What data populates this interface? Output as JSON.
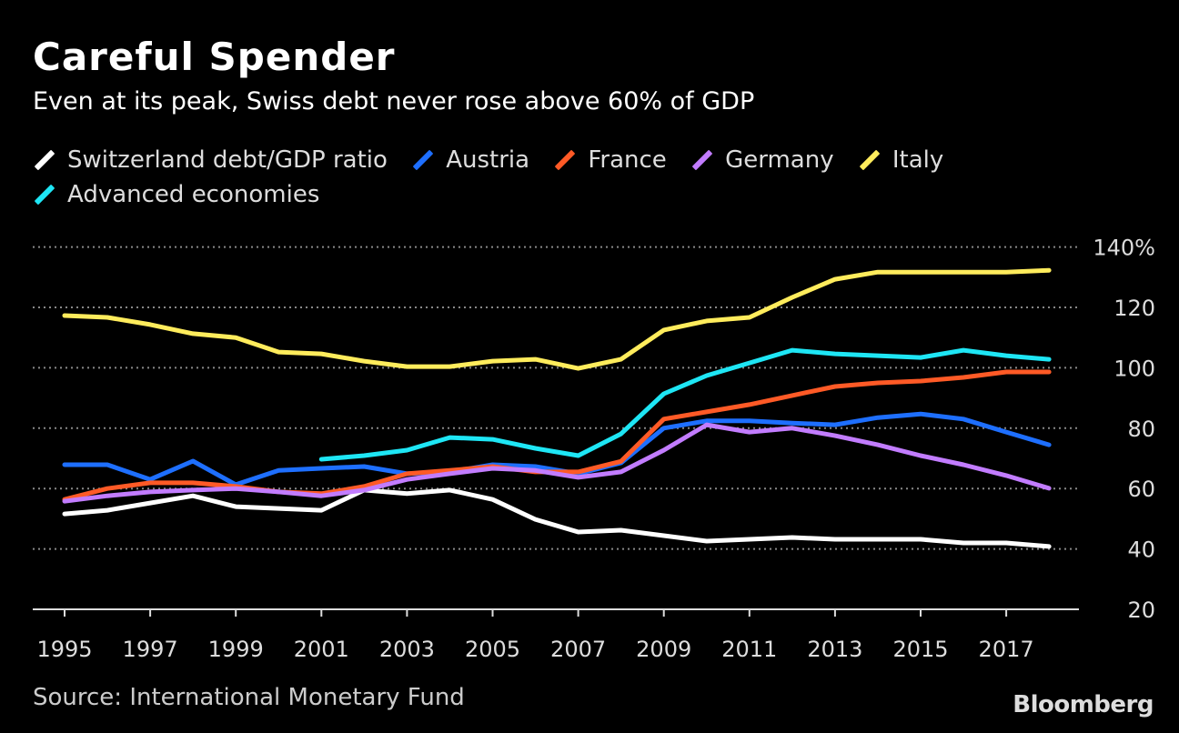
{
  "chart_data": {
    "type": "line",
    "title": "Careful Spender",
    "subtitle": "Even at its peak, Swiss debt never rose above 60% of GDP",
    "x": [
      1995,
      1996,
      1997,
      1998,
      1999,
      2000,
      2001,
      2002,
      2003,
      2004,
      2005,
      2006,
      2007,
      2008,
      2009,
      2010,
      2011,
      2012,
      2013,
      2014,
      2015,
      2016,
      2017,
      2018
    ],
    "x_tick_labels": [
      "1995",
      "1997",
      "1999",
      "2001",
      "2003",
      "2005",
      "2007",
      "2009",
      "2011",
      "2013",
      "2015",
      "2017"
    ],
    "y_ticks": [
      20,
      40,
      60,
      80,
      100,
      120,
      140
    ],
    "y_tick_labels": [
      "20",
      "40",
      "60",
      "80",
      "100",
      "120",
      "140%"
    ],
    "ylim": [
      20,
      140
    ],
    "grid": "horizontal dotted",
    "legend_position": "top-left",
    "series": [
      {
        "name": "Switzerland debt/GDP ratio",
        "color": "#ffffff",
        "values": [
          51.6,
          52.8,
          55.2,
          57.6,
          54,
          53.4,
          52.8,
          59.5,
          58.3,
          59.5,
          56.4,
          49.8,
          45.6,
          46.2,
          44.4,
          42.6,
          43.2,
          43.8,
          43.2,
          43.2,
          43.2,
          42,
          42,
          40.8
        ]
      },
      {
        "name": "Austria",
        "color": "#1e6fff",
        "values": [
          67.9,
          67.9,
          63,
          69.1,
          61.3,
          66,
          66.7,
          67.3,
          64.9,
          65.5,
          67.9,
          67.3,
          64.9,
          68.5,
          80,
          82.4,
          82.4,
          81.7,
          81.1,
          83.5,
          84.7,
          83,
          78.7,
          74.5
        ]
      },
      {
        "name": "France",
        "color": "#ff5a26",
        "values": [
          56.4,
          60,
          61.9,
          61.9,
          60.7,
          58.9,
          58.3,
          60.7,
          64.9,
          66,
          67.3,
          65.5,
          65.5,
          69,
          83,
          85.4,
          87.8,
          90.8,
          93.8,
          95,
          95.6,
          96.8,
          98.6,
          98.6
        ]
      },
      {
        "name": "Germany",
        "color": "#c27cff",
        "values": [
          55.8,
          57.6,
          58.9,
          59.5,
          60,
          58.9,
          57.6,
          59.5,
          63,
          64.9,
          66.7,
          66,
          63.7,
          65.5,
          72.7,
          81.1,
          78.7,
          80,
          77.5,
          74.5,
          70.9,
          67.9,
          64.3,
          60.1
        ]
      },
      {
        "name": "Italy",
        "color": "#ffec5c",
        "values": [
          117.3,
          116.7,
          114.3,
          111.3,
          110,
          105.2,
          104.6,
          102.2,
          100.4,
          100.4,
          102.2,
          102.8,
          99.8,
          102.8,
          112.5,
          115.5,
          116.7,
          123.3,
          129.3,
          131.7,
          131.7,
          131.7,
          131.7,
          132.3
        ]
      },
      {
        "name": "Advanced economies",
        "color": "#1ee6f5",
        "values": [
          null,
          null,
          null,
          null,
          null,
          null,
          69.7,
          70.9,
          72.7,
          76.9,
          76.3,
          73.3,
          70.9,
          78.1,
          91.4,
          97.4,
          101.6,
          105.8,
          104.6,
          104,
          103.4,
          105.8,
          104,
          102.8
        ]
      }
    ],
    "source": "Source: International Monetary Fund",
    "logo": "Bloomberg"
  }
}
